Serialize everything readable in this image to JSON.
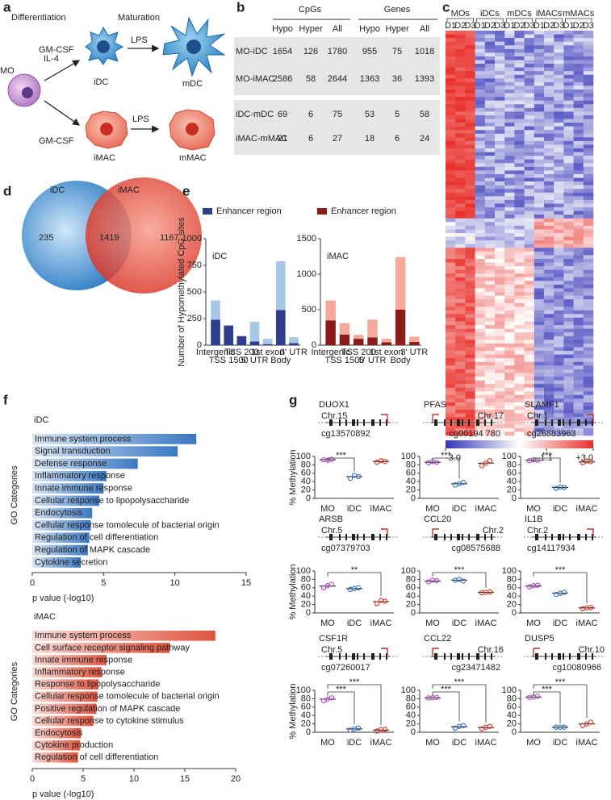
{
  "panel_labels": [
    "a",
    "b",
    "c",
    "d",
    "e",
    "f",
    "g"
  ],
  "a": {
    "differentiation": "Differentiation",
    "maturation": "Maturation",
    "gm_csf_top": "GM-CSF",
    "il4": "IL-4",
    "lps_top": "LPS",
    "mo": "MO",
    "idc": "iDC",
    "mdc": "mDC",
    "gm_csf_bottom": "GM-CSF",
    "lps_bottom": "LPS",
    "imac": "iMAC",
    "mmac": "mMAC"
  },
  "b": {
    "groups": [
      "CpGs",
      "Genes"
    ],
    "columns": [
      "Hypo",
      "Hyper",
      "All",
      "Hypo",
      "Hyper",
      "All"
    ],
    "rows": [
      {
        "label": "MO-iDC",
        "values": [
          1654,
          126,
          1780,
          955,
          75,
          1018
        ]
      },
      {
        "label": "MO-iMAC",
        "values": [
          2586,
          58,
          2644,
          1363,
          36,
          1393
        ]
      },
      {
        "label": "iDC-mDC",
        "values": [
          69,
          6,
          75,
          53,
          5,
          58
        ]
      },
      {
        "label": "iMAC-mMAC",
        "values": [
          21,
          6,
          27,
          18,
          6,
          24
        ]
      }
    ]
  },
  "c": {
    "groups": [
      "MOs",
      "iDCs",
      "mDCs",
      "iMACs",
      "mMACs"
    ],
    "donors": [
      "D1",
      "D2",
      "D3"
    ],
    "colorbar": {
      "lim": [
        -3,
        3
      ],
      "ticks": [
        {
          "value": -3,
          "label": "-3.0"
        },
        1.1,
        {
          "value": 3,
          "label": "+3.0"
        }
      ]
    }
  },
  "d": {
    "sets": [
      "iDC",
      "iMAC"
    ],
    "counts": [
      235,
      1419,
      1167
    ]
  },
  "chart_data": [
    {
      "type": "stacked_bar",
      "title": "iDC",
      "ylabel": "Number of Hypomethylated CpG sites",
      "categories": [
        "Intergenic",
        "TSS 1500",
        "TSS 200",
        "5' UTR",
        "1st exon",
        "Body",
        "3' UTR"
      ],
      "series": [
        {
          "name": "Enhancer region",
          "color": "#2f3d8f",
          "values": [
            240,
            185,
            85,
            35,
            10,
            330,
            20
          ]
        },
        {
          "color": "#a9c8e8",
          "values": [
            180,
            0,
            0,
            185,
            50,
            460,
            55
          ]
        }
      ],
      "ylim": [
        0,
        1000
      ],
      "yticks": [
        0,
        250,
        500,
        750,
        1000
      ]
    },
    {
      "type": "stacked_bar",
      "title": "iMAC",
      "categories": [
        "Intergenic",
        "TSS 1500",
        "TSS 200",
        "5' UTR",
        "1st exon",
        "Body",
        "3' UTR"
      ],
      "series": [
        {
          "name": "Enhancer region",
          "color": "#8c1c1c",
          "values": [
            350,
            150,
            90,
            110,
            40,
            500,
            45
          ]
        },
        {
          "color": "#f4a99b",
          "values": [
            280,
            160,
            55,
            250,
            50,
            740,
            75
          ]
        }
      ],
      "ylim": [
        0,
        1500
      ],
      "yticks": [
        0,
        500,
        1000,
        1500
      ]
    },
    {
      "type": "hbar",
      "title": "iDC",
      "color": "#3a78c2",
      "xlabel": "p value (-log10)",
      "ylabel": "GO Categories",
      "categories": [
        "Immune system process",
        "Signal transduction",
        "Defense response",
        "Inflammatory response",
        "Innate immune response",
        "Cellular response to lipopolysaccharide",
        "Endocytosis",
        "Cellular response tomolecule of bacterial origin",
        "Regulation of cell differentiation",
        "Regulation of MAPK cascade",
        "Cytokine secretion"
      ],
      "values": [
        11.5,
        10.2,
        7.4,
        5.2,
        5.0,
        4.7,
        4.2,
        4.1,
        4.0,
        3.9,
        3.4
      ],
      "xlim": [
        0,
        15
      ],
      "xticks": [
        0,
        5,
        10,
        15
      ]
    },
    {
      "type": "hbar",
      "title": "iMAC",
      "color": "#e0533d",
      "xlabel": "p value (-log10)",
      "ylabel": "GO Categories",
      "categories": [
        "Immune system process",
        "Cell surface receptor signaling pathway",
        "Innate immune response",
        "Inflammatory response",
        "Response to lipopolysaccharide",
        "Cellular response tomolecule of bacterial origin",
        "Positive regulation of MAPK cascade",
        "Cellular response to cytokine stimulus",
        "Endocytosis",
        "Cytokine production",
        "Regulation of cell differentiation"
      ],
      "values": [
        18,
        13.5,
        7.3,
        6.8,
        6.5,
        6.4,
        6.3,
        6.0,
        4.8,
        4.7,
        4.5
      ],
      "xlim": [
        0,
        20
      ],
      "xticks": [
        0,
        5,
        10,
        15,
        20
      ]
    },
    {
      "type": "dot",
      "title": "DUOX1",
      "chromosome": "Chr.15",
      "probe": "cg13570892",
      "ylabel": "% Methylation",
      "categories": [
        "MO",
        "iDC",
        "iMAC"
      ],
      "colors": [
        "#b44fc4",
        "#3a78c2",
        "#d9402e"
      ],
      "points": [
        [
          92,
          91,
          93
        ],
        [
          48,
          55,
          52
        ],
        [
          86,
          90,
          88
        ]
      ],
      "means": [
        92,
        52,
        88
      ],
      "significance": {
        "iDC": "***"
      },
      "ylim": [
        0,
        100
      ],
      "yticks": [
        0,
        20,
        40,
        60,
        80,
        100
      ]
    },
    {
      "type": "dot",
      "title": "PFAS",
      "chromosome": "Chr.17",
      "probe": "cg00194 780",
      "categories": [
        "MO",
        "iDC",
        "iMAC"
      ],
      "colors": [
        "#b44fc4",
        "#3a78c2",
        "#d9402e"
      ],
      "points": [
        [
          85,
          88,
          86
        ],
        [
          32,
          35,
          38
        ],
        [
          78,
          84,
          90
        ]
      ],
      "means": [
        86,
        35,
        84
      ],
      "significance": {
        "iDC": "***"
      },
      "ylim": [
        0,
        100
      ],
      "yticks": [
        0,
        20,
        40,
        60,
        80,
        100
      ]
    },
    {
      "type": "dot",
      "title": "SLAMF1",
      "chromosome": "Chr.1",
      "probe": "cg26883963",
      "categories": [
        "MO",
        "iDC",
        "iMAC"
      ],
      "colors": [
        "#b44fc4",
        "#3a78c2",
        "#d9402e"
      ],
      "points": [
        [
          90,
          92,
          91
        ],
        [
          24,
          27,
          26
        ],
        [
          85,
          89,
          88
        ]
      ],
      "means": [
        91,
        26,
        87
      ],
      "significance": {
        "iDC": "***"
      },
      "ylim": [
        0,
        100
      ],
      "yticks": [
        0,
        20,
        40,
        60,
        80,
        100
      ]
    },
    {
      "type": "dot",
      "title": "ARSB",
      "chromosome": "Chr.5",
      "probe": "cg07379703",
      "ylabel": "% Methylation",
      "categories": [
        "MO",
        "iDC",
        "iMAC"
      ],
      "colors": [
        "#b44fc4",
        "#3a78c2",
        "#d9402e"
      ],
      "points": [
        [
          60,
          65,
          68
        ],
        [
          56,
          58,
          60
        ],
        [
          22,
          30,
          28
        ]
      ],
      "means": [
        64,
        58,
        27
      ],
      "significance": {
        "iMAC": "**"
      },
      "ylim": [
        0,
        100
      ],
      "yticks": [
        0,
        20,
        40,
        60,
        80,
        100
      ]
    },
    {
      "type": "dot",
      "title": "CCL20",
      "chromosome": "Chr.2",
      "probe": "cg08575688",
      "categories": [
        "MO",
        "iDC",
        "iMAC"
      ],
      "colors": [
        "#b44fc4",
        "#3a78c2",
        "#d9402e"
      ],
      "points": [
        [
          74,
          78,
          77
        ],
        [
          78,
          80,
          76
        ],
        [
          48,
          49,
          50
        ]
      ],
      "means": [
        76,
        78,
        49
      ],
      "significance": {
        "iMAC": "***"
      },
      "ylim": [
        0,
        100
      ],
      "yticks": [
        0,
        20,
        40,
        60,
        80,
        100
      ]
    },
    {
      "type": "dot",
      "title": "IL1B",
      "chromosome": "Chr.2",
      "probe": "cg14117934",
      "categories": [
        "MO",
        "iDC",
        "iMAC"
      ],
      "colors": [
        "#b44fc4",
        "#3a78c2",
        "#d9402e"
      ],
      "points": [
        [
          62,
          65,
          66
        ],
        [
          44,
          47,
          49
        ],
        [
          10,
          12,
          13
        ]
      ],
      "means": [
        64,
        47,
        12
      ],
      "significance": {
        "iMAC": "***"
      },
      "ylim": [
        0,
        100
      ],
      "yticks": [
        0,
        20,
        40,
        60,
        80,
        100
      ]
    },
    {
      "type": "dot",
      "title": "CSF1R",
      "chromosome": "Chr.5",
      "probe": "cg07260017",
      "ylabel": "% Methylation",
      "categories": [
        "MO",
        "iDC",
        "iMAC"
      ],
      "colors": [
        "#b44fc4",
        "#3a78c2",
        "#d9402e"
      ],
      "points": [
        [
          75,
          79,
          82
        ],
        [
          5,
          8,
          10
        ],
        [
          3,
          6,
          7
        ]
      ],
      "means": [
        79,
        8,
        5
      ],
      "significance": {
        "iDC": "***",
        "iMAC": "***"
      },
      "ylim": [
        0,
        100
      ],
      "yticks": [
        0,
        20,
        40,
        60,
        80,
        100
      ]
    },
    {
      "type": "dot",
      "title": "CCL22",
      "chromosome": "Chr.16",
      "probe": "cg23471482",
      "categories": [
        "MO",
        "iDC",
        "iMAC"
      ],
      "colors": [
        "#b44fc4",
        "#3a78c2",
        "#d9402e"
      ],
      "points": [
        [
          82,
          82,
          83
        ],
        [
          10,
          14,
          16
        ],
        [
          8,
          12,
          14
        ]
      ],
      "means": [
        82,
        13,
        11
      ],
      "significance": {
        "iDC": "***",
        "iMAC": "***"
      },
      "ylim": [
        0,
        100
      ],
      "yticks": [
        0,
        20,
        40,
        60,
        80,
        100
      ]
    },
    {
      "type": "dot",
      "title": "DUSP5",
      "chromosome": "Chr.10",
      "probe": "cg10080966",
      "categories": [
        "MO",
        "iDC",
        "iMAC"
      ],
      "colors": [
        "#b44fc4",
        "#3a78c2",
        "#d9402e"
      ],
      "points": [
        [
          83,
          84,
          86
        ],
        [
          12,
          12,
          12
        ],
        [
          16,
          20,
          24
        ]
      ],
      "means": [
        84,
        12,
        20
      ],
      "significance": {
        "iDC": "***",
        "iMAC": "***"
      },
      "ylim": [
        0,
        100
      ],
      "yticks": [
        0,
        20,
        40,
        60,
        80,
        100
      ]
    }
  ]
}
